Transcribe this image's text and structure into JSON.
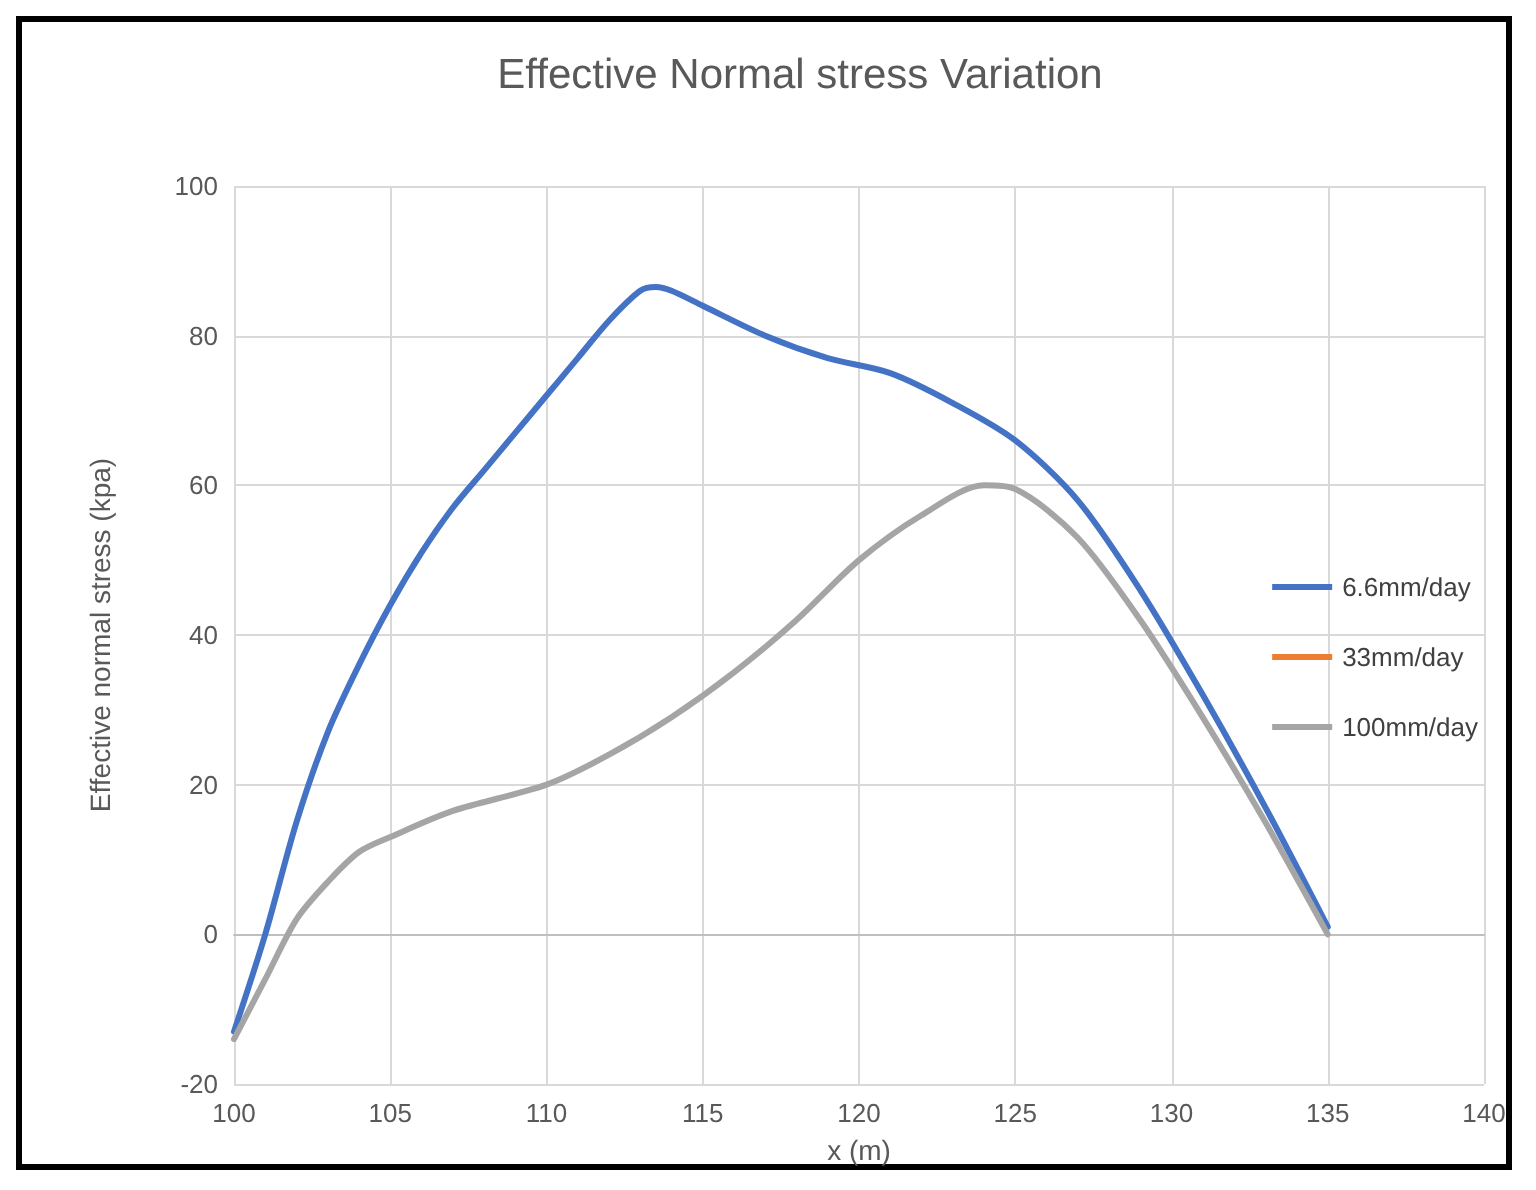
{
  "chart_data": {
    "type": "line",
    "title": "Effective Normal stress Variation",
    "xlabel": "x (m)",
    "ylabel": "Effective normal stress (kpa)",
    "xlim": [
      100,
      140
    ],
    "xticks": [
      100,
      105,
      110,
      115,
      120,
      125,
      130,
      135,
      140
    ],
    "ylim": [
      -20,
      100
    ],
    "yticks": [
      -20,
      0,
      20,
      40,
      60,
      80,
      100
    ],
    "grid": true,
    "legend": "right",
    "marker": "none",
    "line_style": "solid",
    "series": [
      {
        "name": "6.6mm/day",
        "color": "#4472c4",
        "x": [
          100,
          101,
          102,
          103,
          104,
          105,
          106,
          107,
          108,
          109,
          110,
          111,
          112,
          113,
          113.5,
          114,
          115,
          117,
          119,
          121,
          123,
          125,
          127,
          129,
          131,
          133,
          135
        ],
        "values": [
          -13,
          0,
          15,
          27,
          36,
          44,
          51,
          57,
          62,
          67,
          72,
          77,
          82,
          86,
          86.5,
          86,
          84,
          80,
          77,
          75,
          71,
          66,
          58,
          46,
          32,
          17,
          1
        ]
      },
      {
        "name": "33mm/day",
        "color": "#ed7d31"
      },
      {
        "name": "100mm/day",
        "color": "#a5a5a5",
        "x": [
          100,
          101,
          102,
          103,
          104,
          105,
          107,
          110,
          112,
          114,
          116,
          118,
          120,
          122,
          124,
          125,
          127,
          129,
          131,
          133,
          135
        ],
        "values": [
          -14,
          -6,
          2,
          7,
          11,
          13,
          16.5,
          20,
          24,
          29,
          35,
          42,
          50,
          56,
          60,
          59.5,
          53,
          42,
          29,
          15,
          0
        ]
      }
    ]
  }
}
